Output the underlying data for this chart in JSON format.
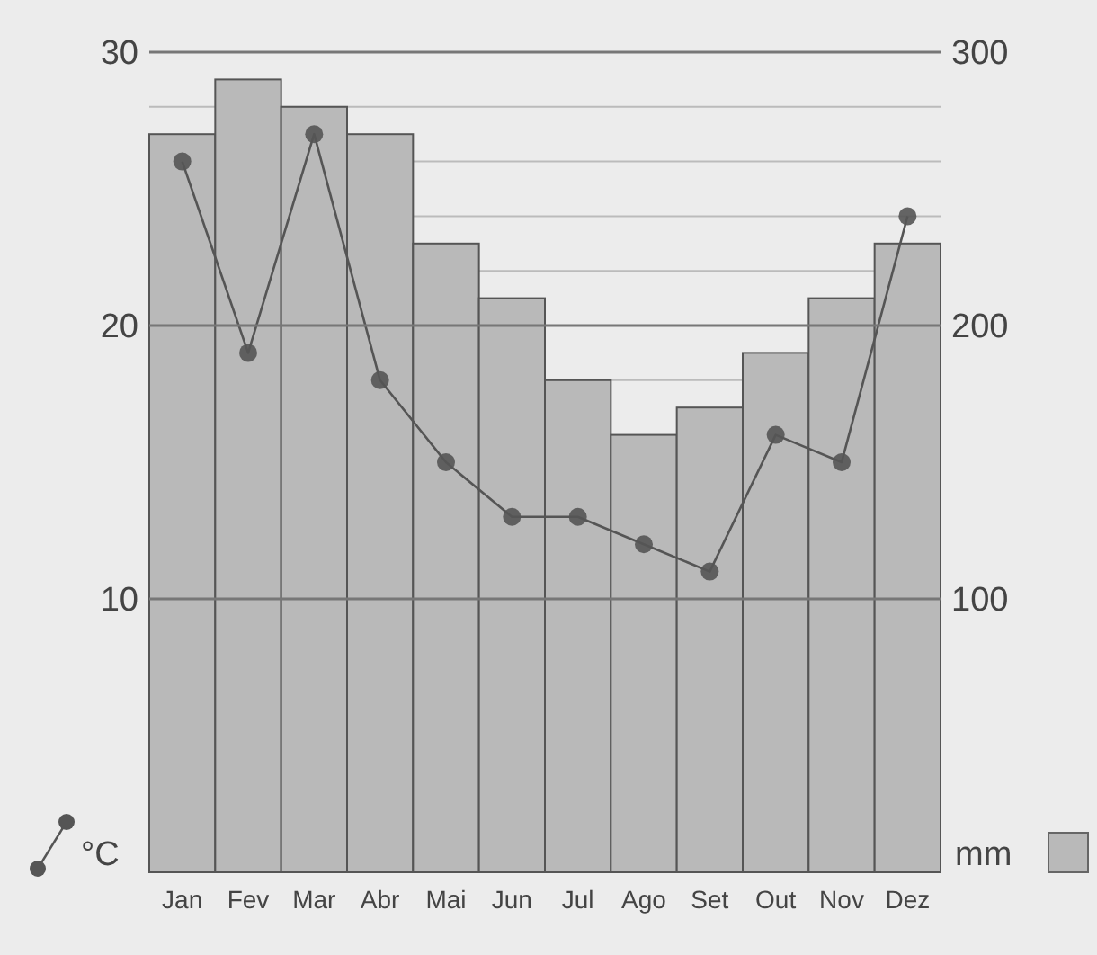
{
  "chart_data": {
    "type": "bar",
    "categories": [
      "Jan",
      "Fev",
      "Mar",
      "Abr",
      "Mai",
      "Jun",
      "Jul",
      "Ago",
      "Set",
      "Out",
      "Nov",
      "Dez"
    ],
    "series": [
      {
        "name": "mm",
        "axis": "y2",
        "color": "#b9b9b9",
        "values": [
          270,
          290,
          280,
          270,
          230,
          210,
          180,
          160,
          170,
          190,
          210,
          230
        ]
      },
      {
        "name": "°C",
        "type": "line",
        "axis": "y",
        "color": "#555555",
        "values": [
          26,
          19,
          27,
          18,
          15,
          13,
          13,
          12,
          11,
          16,
          15,
          24
        ]
      }
    ],
    "ylim": [
      0,
      30
    ],
    "yticks": [
      10,
      {
        "value": 18,
        "label": null
      },
      20,
      {
        "value": 22,
        "label": null
      },
      {
        "value": 24,
        "label": null
      },
      {
        "value": 26,
        "label": null
      },
      {
        "value": 28,
        "label": null
      },
      30
    ],
    "y2lim": [
      0,
      300
    ],
    "y2ticks": [
      100,
      200,
      300
    ],
    "grid": "y",
    "legend": "bottom",
    "marker": "circle",
    "line_style": "solid"
  }
}
